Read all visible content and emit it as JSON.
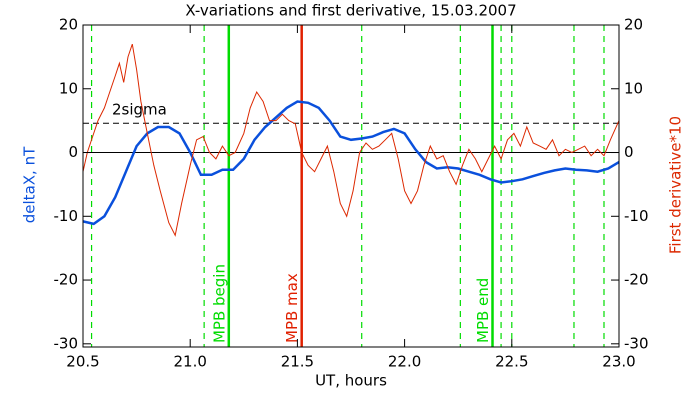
{
  "chart_data": {
    "type": "line",
    "title": "X-variations and first derivative, 15.03.2007",
    "xlabel": "UT, hours",
    "ylabel": "deltaX, nT",
    "y2label": "First derivative*10",
    "xlim": [
      20.5,
      23.0
    ],
    "xticks": [
      20.5,
      {
        "value": 21,
        "label": "21.0"
      },
      21.5,
      {
        "value": 22,
        "label": "22.0"
      },
      22.5,
      {
        "value": 23,
        "label": "23.0"
      }
    ],
    "ylim": [
      -30.5,
      20
    ],
    "yticks": [
      -30,
      -20,
      -10,
      0,
      10,
      20
    ],
    "y2lim": [
      -30.5,
      20
    ],
    "y2ticks": [
      -30,
      -20,
      -10,
      0,
      10,
      20
    ],
    "series": [
      {
        "name": "deltaX, nT",
        "color": "#0a50dc",
        "axis": "y",
        "x": [
          20.5,
          20.55,
          20.6,
          20.65,
          20.7,
          20.75,
          20.8,
          20.85,
          20.9,
          20.95,
          21.0,
          21.05,
          21.1,
          21.15,
          21.2,
          21.25,
          21.3,
          21.35,
          21.4,
          21.45,
          21.5,
          21.55,
          21.6,
          21.65,
          21.7,
          21.75,
          21.8,
          21.85,
          21.9,
          21.95,
          22.0,
          22.05,
          22.1,
          22.15,
          22.2,
          22.25,
          22.3,
          22.35,
          22.4,
          22.45,
          22.5,
          22.55,
          22.6,
          22.65,
          22.7,
          22.75,
          22.8,
          22.85,
          22.9,
          22.95,
          23.0
        ],
        "values": [
          -10.8,
          -11.2,
          -10,
          -7,
          -3,
          1,
          3,
          4,
          4,
          3,
          0,
          -3.5,
          -3.5,
          -2.7,
          -2.7,
          -1,
          2,
          4,
          5.5,
          7,
          8,
          7.8,
          7,
          5,
          2.5,
          2,
          2.2,
          2.5,
          3.2,
          3.7,
          3,
          0.5,
          -1.5,
          -2.5,
          -2.3,
          -2.5,
          -3,
          -3.5,
          -4.2,
          -4.7,
          -4.5,
          -4.2,
          -3.7,
          -3.2,
          -2.8,
          -2.5,
          -2.7,
          -2.8,
          -3,
          -2.5,
          -1.5
        ]
      },
      {
        "name": "First derivative*10",
        "color": "#dc2800",
        "axis": "y2",
        "x": [
          20.5,
          20.52,
          20.55,
          20.57,
          20.6,
          20.62,
          20.65,
          20.67,
          20.69,
          20.71,
          20.73,
          20.75,
          20.77,
          20.8,
          20.83,
          20.86,
          20.9,
          20.93,
          20.96,
          21.0,
          21.03,
          21.06,
          21.09,
          21.12,
          21.15,
          21.18,
          21.21,
          21.25,
          21.28,
          21.31,
          21.34,
          21.37,
          21.4,
          21.43,
          21.46,
          21.49,
          21.52,
          21.55,
          21.58,
          21.61,
          21.64,
          21.67,
          21.7,
          21.73,
          21.76,
          21.79,
          21.82,
          21.85,
          21.88,
          21.91,
          21.94,
          21.97,
          22.0,
          22.03,
          22.06,
          22.09,
          22.12,
          22.15,
          22.18,
          22.21,
          22.24,
          22.27,
          22.3,
          22.33,
          22.36,
          22.39,
          22.42,
          22.45,
          22.48,
          22.51,
          22.54,
          22.57,
          22.6,
          22.63,
          22.66,
          22.69,
          22.72,
          22.75,
          22.78,
          22.81,
          22.84,
          22.87,
          22.9,
          22.93,
          22.96,
          23.0
        ],
        "values": [
          -3,
          0,
          3,
          5,
          7,
          9,
          12,
          14,
          11,
          15,
          17,
          13,
          8,
          3,
          -2,
          -6,
          -11,
          -13,
          -8,
          -2,
          2,
          2.5,
          0,
          -1,
          1,
          -0.5,
          0,
          3,
          7,
          9.5,
          8,
          5,
          5,
          6,
          5,
          4.5,
          0,
          -2,
          -3,
          -1,
          1,
          -3,
          -8,
          -10,
          -6,
          0,
          1.5,
          0.5,
          1,
          2,
          3,
          -1,
          -6,
          -8,
          -6,
          -2,
          1,
          -1,
          -0.5,
          -3,
          -5,
          -2,
          0.5,
          -1,
          -3,
          -1,
          1,
          -1,
          2,
          3,
          1,
          4,
          1.5,
          1,
          0.5,
          2,
          -0.5,
          0.5,
          0,
          0.5,
          1,
          -0.5,
          0.5,
          -0.5,
          2,
          5
        ]
      }
    ],
    "hlines": [
      {
        "y": 4.6,
        "label": "2sigma",
        "color": "#000000",
        "style": "dashed"
      },
      {
        "y": 0,
        "color": "#000000",
        "style": "solid"
      }
    ],
    "vlines": [
      {
        "x": 20.54,
        "color": "#00dc00",
        "style": "dashed"
      },
      {
        "x": 21.065,
        "color": "#00dc00",
        "style": "dashed"
      },
      {
        "x": 21.18,
        "label": "MPB begin",
        "color": "#00dc00",
        "style": "solid"
      },
      {
        "x": 21.52,
        "label": "MPB max",
        "color": "#e02000",
        "style": "solid"
      },
      {
        "x": 21.8,
        "color": "#00dc00",
        "style": "dashed"
      },
      {
        "x": 22.26,
        "color": "#00dc00",
        "style": "dashed"
      },
      {
        "x": 22.41,
        "label": "MPB end",
        "color": "#00dc00",
        "style": "solid"
      },
      {
        "x": 22.45,
        "color": "#00dc00",
        "style": "dashed"
      },
      {
        "x": 22.5,
        "color": "#00dc00",
        "style": "dashed"
      },
      {
        "x": 22.79,
        "color": "#00dc00",
        "style": "dashed"
      },
      {
        "x": 22.93,
        "color": "#00dc00",
        "style": "dashed"
      }
    ]
  }
}
